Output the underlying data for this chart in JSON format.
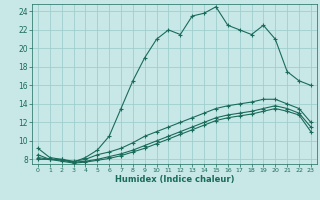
{
  "xlabel": "Humidex (Indice chaleur)",
  "bg_color": "#c8e8e8",
  "grid_color": "#a0cece",
  "line_color": "#1a6b5a",
  "xlim": [
    -0.5,
    23.5
  ],
  "ylim": [
    7.5,
    24.8
  ],
  "xticks": [
    0,
    1,
    2,
    3,
    4,
    5,
    6,
    7,
    8,
    9,
    10,
    11,
    12,
    13,
    14,
    15,
    16,
    17,
    18,
    19,
    20,
    21,
    22,
    23
  ],
  "yticks": [
    8,
    10,
    12,
    14,
    16,
    18,
    20,
    22,
    24
  ],
  "series": [
    {
      "x": [
        0,
        1,
        2,
        3,
        4,
        5,
        6,
        7,
        8,
        9,
        10,
        11,
        12,
        13,
        14,
        15,
        16,
        17,
        18,
        19,
        20,
        21,
        22,
        23
      ],
      "y": [
        9.2,
        8.2,
        8.0,
        7.7,
        8.2,
        9.0,
        10.5,
        13.5,
        16.5,
        19.0,
        21.0,
        22.0,
        21.5,
        23.5,
        23.8,
        24.5,
        22.5,
        22.0,
        21.5,
        22.5,
        21.0,
        17.5,
        16.5,
        16.0
      ]
    },
    {
      "x": [
        0,
        1,
        2,
        3,
        4,
        5,
        6,
        7,
        8,
        9,
        10,
        11,
        12,
        13,
        14,
        15,
        16,
        17,
        18,
        19,
        20,
        21,
        22,
        23
      ],
      "y": [
        8.5,
        8.0,
        8.0,
        7.8,
        8.0,
        8.5,
        8.8,
        9.2,
        9.8,
        10.5,
        11.0,
        11.5,
        12.0,
        12.5,
        13.0,
        13.5,
        13.8,
        14.0,
        14.2,
        14.5,
        14.5,
        14.0,
        13.5,
        12.0
      ]
    },
    {
      "x": [
        0,
        1,
        2,
        3,
        4,
        5,
        6,
        7,
        8,
        9,
        10,
        11,
        12,
        13,
        14,
        15,
        16,
        17,
        18,
        19,
        20,
        21,
        22,
        23
      ],
      "y": [
        8.2,
        8.0,
        7.9,
        7.7,
        7.8,
        8.0,
        8.3,
        8.6,
        9.0,
        9.5,
        10.0,
        10.5,
        11.0,
        11.5,
        12.0,
        12.5,
        12.8,
        13.0,
        13.2,
        13.5,
        13.8,
        13.5,
        13.0,
        11.5
      ]
    },
    {
      "x": [
        0,
        1,
        2,
        3,
        4,
        5,
        6,
        7,
        8,
        9,
        10,
        11,
        12,
        13,
        14,
        15,
        16,
        17,
        18,
        19,
        20,
        21,
        22,
        23
      ],
      "y": [
        8.0,
        8.0,
        7.8,
        7.6,
        7.7,
        7.9,
        8.1,
        8.4,
        8.8,
        9.2,
        9.7,
        10.2,
        10.7,
        11.2,
        11.7,
        12.2,
        12.5,
        12.7,
        12.9,
        13.2,
        13.5,
        13.2,
        12.8,
        11.0
      ]
    }
  ]
}
